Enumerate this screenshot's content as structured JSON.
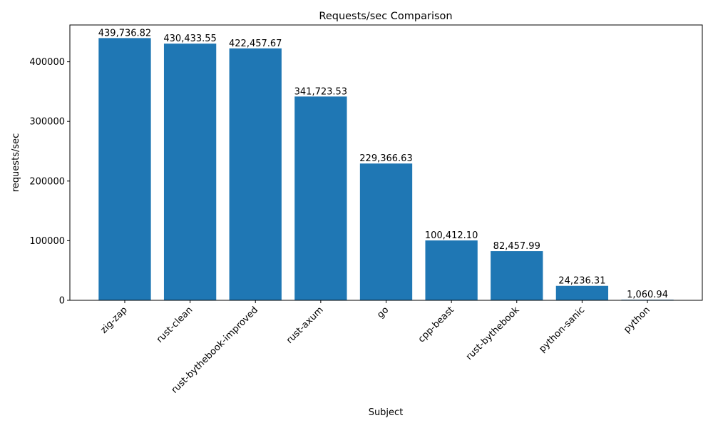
{
  "chart_data": {
    "type": "bar",
    "title": "Requests/sec Comparison",
    "xlabel": "Subject",
    "ylabel": "requests/sec",
    "categories": [
      "zig-zap",
      "rust-clean",
      "rust-bythebook-improved",
      "rust-axum",
      "go",
      "cpp-beast",
      "rust-bythebook",
      "python-sanic",
      "python"
    ],
    "values": [
      439736.82,
      430433.55,
      422457.67,
      341723.53,
      229366.63,
      100412.1,
      82457.99,
      24236.31,
      1060.94
    ],
    "data_labels": [
      "439,736.82",
      "430,433.55",
      "422,457.67",
      "341,723.53",
      "229,366.63",
      "100,412.10",
      "82,457.99",
      "24,236.31",
      "1,060.94"
    ],
    "ylim": [
      0,
      461723
    ],
    "yticks": [
      0,
      100000,
      200000,
      300000,
      400000
    ],
    "ytick_labels": [
      "0",
      "100000",
      "200000",
      "300000",
      "400000"
    ],
    "grid": false,
    "bar_color": "#1f77b4"
  }
}
